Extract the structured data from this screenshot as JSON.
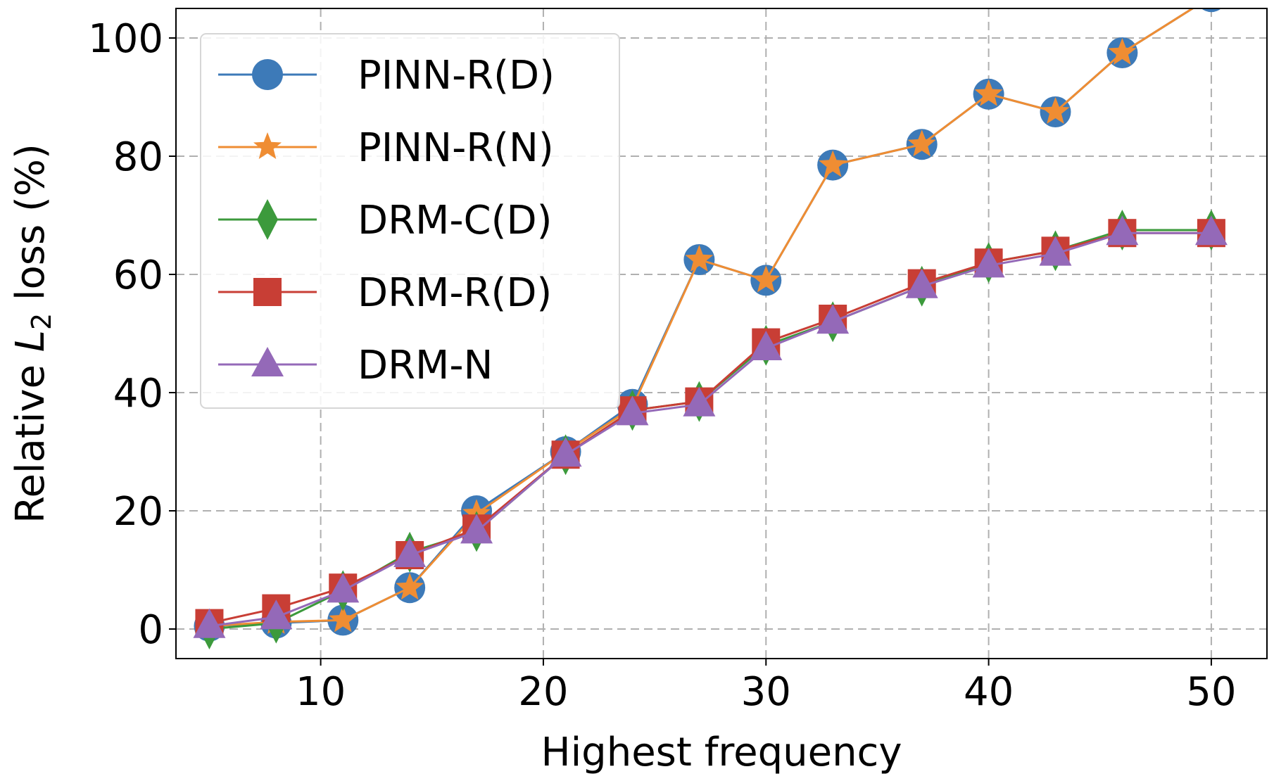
{
  "chart_data": {
    "type": "line",
    "title": "",
    "xlabel": "Highest frequency",
    "ylabel_prefix": "Relative ",
    "ylabel_symbol": "L",
    "ylabel_subscript": "2",
    "ylabel_suffix": " loss (%)",
    "xlim": [
      3.5,
      52.5
    ],
    "ylim": [
      -5,
      105
    ],
    "xticks": [
      10,
      20,
      30,
      40,
      50
    ],
    "yticks": [
      0,
      20,
      40,
      60,
      80,
      100
    ],
    "grid": true,
    "legend_position": "top-left",
    "x": [
      5,
      8,
      11,
      14,
      17,
      21,
      24,
      27,
      30,
      33,
      37,
      40,
      43,
      46,
      50
    ],
    "series": [
      {
        "name": "PINN-R(D)",
        "color": "#3d7ab8",
        "marker": "circle",
        "values": [
          0.5,
          1.0,
          1.5,
          7.0,
          20.0,
          30.0,
          38.0,
          62.5,
          59.0,
          78.5,
          82.0,
          90.5,
          87.5,
          97.5,
          107.0
        ]
      },
      {
        "name": "PINN-R(N)",
        "color": "#ef8d33",
        "marker": "star",
        "values": [
          0.5,
          1.2,
          1.5,
          7.0,
          19.5,
          30.0,
          37.5,
          62.5,
          59.0,
          78.5,
          82.0,
          90.5,
          87.5,
          97.5,
          107.0
        ]
      },
      {
        "name": "DRM-C(D)",
        "color": "#3c9a3c",
        "marker": "diamond",
        "values": [
          0.0,
          1.0,
          6.5,
          13.0,
          16.5,
          29.5,
          37.0,
          38.5,
          48.0,
          52.0,
          58.0,
          62.0,
          64.0,
          67.5,
          67.5
        ]
      },
      {
        "name": "DRM-R(D)",
        "color": "#c83e35",
        "marker": "square",
        "values": [
          1.0,
          3.5,
          7.0,
          12.5,
          17.0,
          29.5,
          37.0,
          38.5,
          48.5,
          52.5,
          58.5,
          62.0,
          64.0,
          67.0,
          67.0
        ]
      },
      {
        "name": "DRM-N",
        "color": "#9469b8",
        "marker": "triangle",
        "values": [
          0.5,
          2.0,
          6.5,
          12.5,
          16.5,
          29.5,
          36.5,
          38.0,
          47.5,
          52.0,
          58.0,
          61.5,
          63.5,
          67.0,
          67.0
        ]
      }
    ]
  }
}
